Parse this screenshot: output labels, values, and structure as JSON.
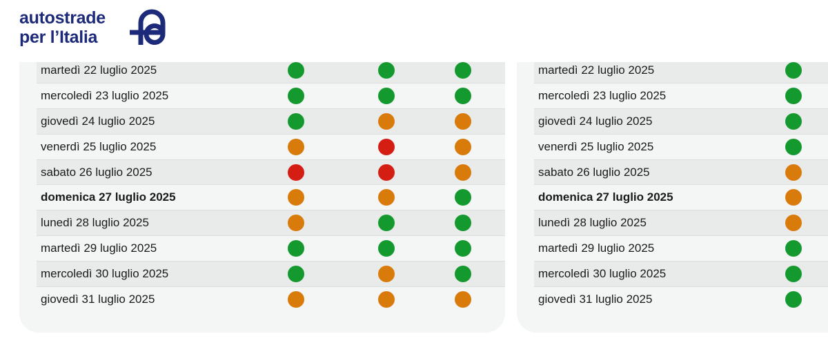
{
  "brand": {
    "line1": "autostrade",
    "line2": "per l’Italia",
    "color": "#1d2a7a"
  },
  "colors": {
    "green": "#14992f",
    "orange": "#d97b0b",
    "red": "#d41e14"
  },
  "left_panel": {
    "rows": [
      {
        "date": "martedì 22 luglio 2025",
        "bold": false,
        "levels": [
          "green",
          "green",
          "green"
        ]
      },
      {
        "date": "mercoledì 23 luglio 2025",
        "bold": false,
        "levels": [
          "green",
          "green",
          "green"
        ]
      },
      {
        "date": "giovedì 24 luglio 2025",
        "bold": false,
        "levels": [
          "green",
          "orange",
          "orange"
        ]
      },
      {
        "date": "venerdì 25 luglio 2025",
        "bold": false,
        "levels": [
          "orange",
          "red",
          "orange"
        ]
      },
      {
        "date": "sabato 26 luglio 2025",
        "bold": false,
        "levels": [
          "red",
          "red",
          "orange"
        ]
      },
      {
        "date": "domenica 27 luglio 2025",
        "bold": true,
        "levels": [
          "orange",
          "orange",
          "green"
        ]
      },
      {
        "date": "lunedì 28 luglio 2025",
        "bold": false,
        "levels": [
          "orange",
          "green",
          "green"
        ]
      },
      {
        "date": "martedì 29 luglio 2025",
        "bold": false,
        "levels": [
          "green",
          "green",
          "green"
        ]
      },
      {
        "date": "mercoledì 30 luglio 2025",
        "bold": false,
        "levels": [
          "green",
          "orange",
          "green"
        ]
      },
      {
        "date": "giovedì 31 luglio 2025",
        "bold": false,
        "levels": [
          "orange",
          "orange",
          "orange"
        ]
      }
    ]
  },
  "right_panel": {
    "rows": [
      {
        "date": "martedì 22 luglio 2025",
        "bold": false,
        "levels": [
          "green"
        ]
      },
      {
        "date": "mercoledì 23 luglio 2025",
        "bold": false,
        "levels": [
          "green"
        ]
      },
      {
        "date": "giovedì 24 luglio 2025",
        "bold": false,
        "levels": [
          "green"
        ]
      },
      {
        "date": "venerdì 25 luglio 2025",
        "bold": false,
        "levels": [
          "green"
        ]
      },
      {
        "date": "sabato 26 luglio 2025",
        "bold": false,
        "levels": [
          "orange"
        ]
      },
      {
        "date": "domenica 27 luglio 2025",
        "bold": true,
        "levels": [
          "orange"
        ]
      },
      {
        "date": "lunedì 28 luglio 2025",
        "bold": false,
        "levels": [
          "orange"
        ]
      },
      {
        "date": "martedì 29 luglio 2025",
        "bold": false,
        "levels": [
          "green"
        ]
      },
      {
        "date": "mercoledì 30 luglio 2025",
        "bold": false,
        "levels": [
          "green"
        ]
      },
      {
        "date": "giovedì 31 luglio 2025",
        "bold": false,
        "levels": [
          "green"
        ]
      }
    ]
  }
}
